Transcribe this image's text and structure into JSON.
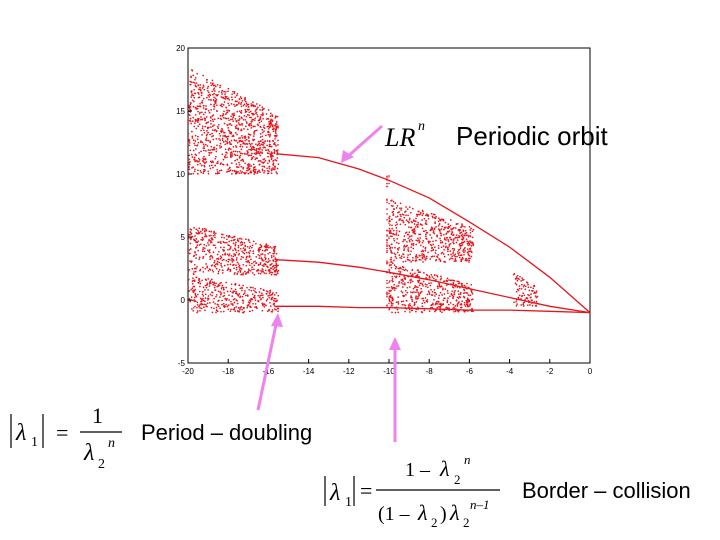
{
  "chart_data": {
    "type": "scatter",
    "title": "",
    "xlabel": "",
    "ylabel": "",
    "xlim": [
      -20,
      0
    ],
    "ylim": [
      -5,
      20
    ],
    "x_ticks": [
      "-20",
      "-18",
      "-16",
      "-14",
      "-12",
      "-10",
      "-8",
      "-6",
      "-4",
      "-2",
      "0"
    ],
    "y_ticks": [
      "-5",
      "0",
      "5",
      "10",
      "15",
      "20"
    ],
    "grid": false,
    "color": "#e8141c",
    "description_free": true,
    "branches": [
      {
        "x": [
          -15.6,
          -13.5,
          -11.5,
          -10,
          -8,
          -6,
          -4,
          -2,
          0
        ],
        "y": [
          11.6,
          11.3,
          10.4,
          9.5,
          8.1,
          6.2,
          4.2,
          1.8,
          -1.0
        ]
      },
      {
        "x": [
          -15.6,
          -13.5,
          -11.5,
          -10,
          -8,
          -6,
          -4,
          -2,
          0
        ],
        "y": [
          3.2,
          3.0,
          2.6,
          2.2,
          1.6,
          0.9,
          0.2,
          -0.5,
          -1.0
        ]
      },
      {
        "x": [
          -15.6,
          -13.5,
          -11.5,
          -10,
          -8,
          -6,
          -4,
          -2,
          0
        ],
        "y": [
          -0.5,
          -0.5,
          -0.6,
          -0.6,
          -0.7,
          -0.8,
          -0.8,
          -0.9,
          -1.0
        ]
      }
    ],
    "chaotic_regions": [
      {
        "x": [
          -20,
          -15.5
        ],
        "bands": [
          [
            10.0,
            18.5
          ],
          [
            2.0,
            6.0
          ],
          [
            -1.0,
            2.0
          ]
        ]
      },
      {
        "x": [
          -10.0,
          -5.8
        ],
        "bands": [
          [
            3.0,
            8.0
          ],
          [
            -1.0,
            3.0
          ]
        ]
      },
      {
        "x": [
          -3.8,
          -2.6
        ],
        "bands": [
          [
            -0.5,
            2.2
          ]
        ]
      }
    ]
  },
  "annotations": {
    "top": {
      "math_main": "LR",
      "math_sup": "n",
      "text": "Periodic orbit"
    },
    "period_doubling": {
      "lambda": "λ",
      "sub1": "1",
      "equals": "=",
      "numerator": "1",
      "den_lambda": "λ",
      "den_sub": "2",
      "den_sup": "n",
      "text": "Period – doubling"
    },
    "border_collision": {
      "lambda": "λ",
      "sub1": "1",
      "equals": "=",
      "num_one": "1 –",
      "num_lambda": "λ",
      "num_sub": "2",
      "num_sup": "n",
      "den_open": "(1 –",
      "den_lambda1": "λ",
      "den_sub1": "2",
      "den_close": ")",
      "den_lambda2": "λ",
      "den_sub2": "2",
      "den_sup": "n–1",
      "text": "Border – collision"
    }
  },
  "colors": {
    "arrow": "#ee82ee",
    "points": "#e8141c",
    "axis": "#000000"
  }
}
